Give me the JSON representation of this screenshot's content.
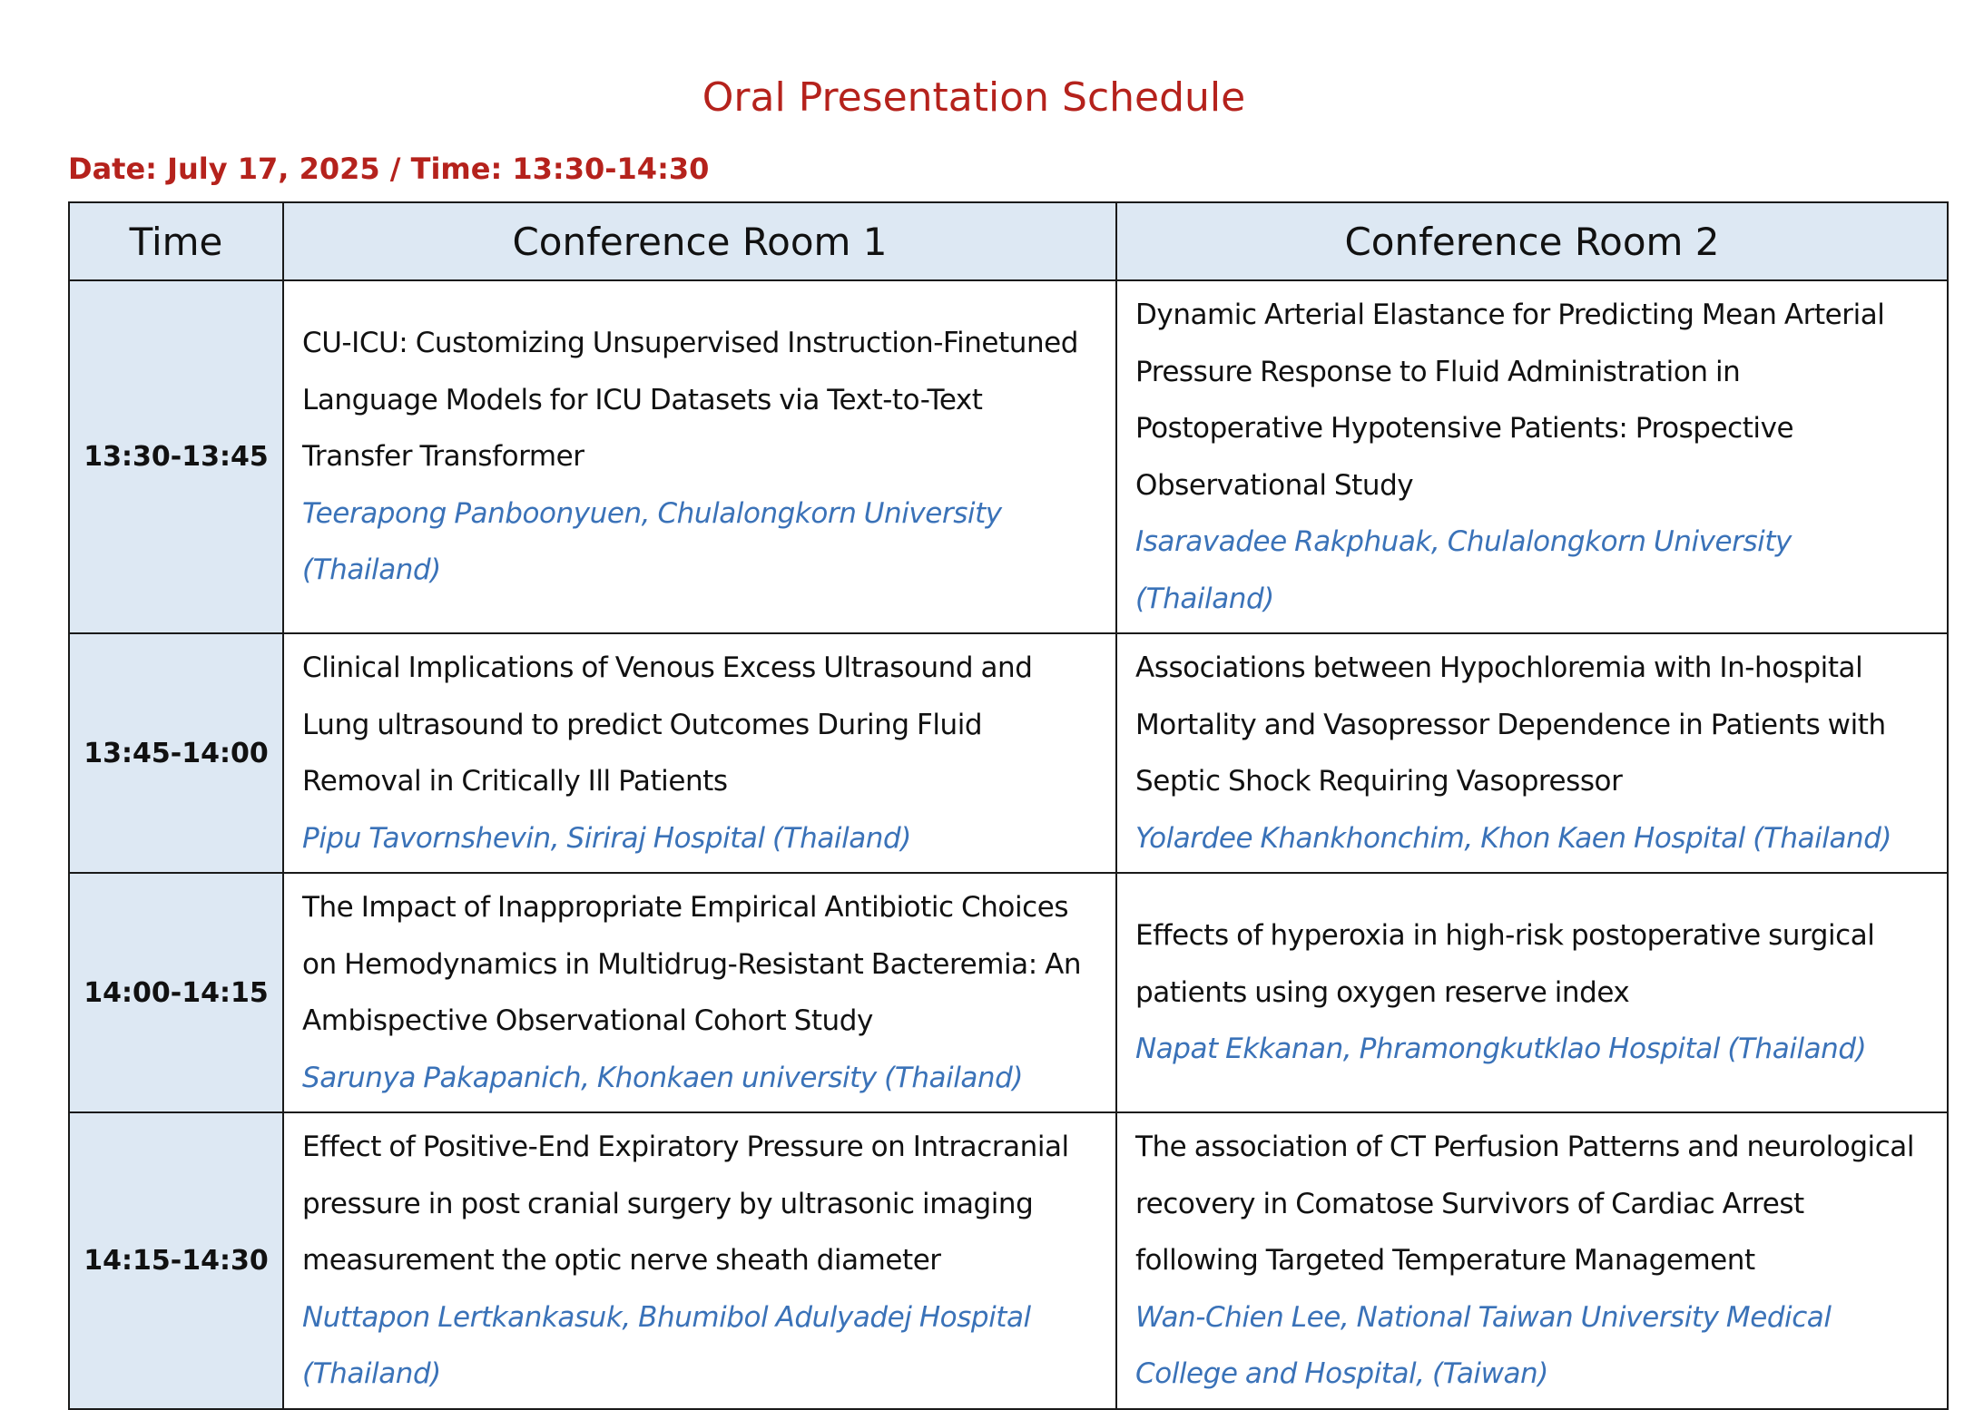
{
  "page": {
    "title": "Oral Presentation Schedule",
    "date_line": "Date: July 17, 2025 / Time: 13:30-14:30"
  },
  "table": {
    "headers": [
      "Time",
      "Conference Room 1",
      "Conference Room 2"
    ],
    "rows": [
      {
        "time": "13:30-13:45",
        "room1": {
          "title": "CU-ICU: Customizing Unsupervised Instruction-Finetuned Language Models for ICU Datasets via Text-to-Text Transfer Transformer",
          "author": "Teerapong Panboonyuen, Chulalongkorn University (Thailand)"
        },
        "room2": {
          "title": "Dynamic Arterial Elastance for Predicting Mean Arterial Pressure Response to Fluid Administration in Postoperative Hypotensive Patients: Prospective Observational Study",
          "author": "Isaravadee Rakphuak, Chulalongkorn University (Thailand)"
        }
      },
      {
        "time": "13:45-14:00",
        "room1": {
          "title": "Clinical Implications of Venous Excess Ultrasound and Lung ultrasound to predict Outcomes During Fluid Removal in Critically Ill Patients",
          "author": "Pipu Tavornshevin, Siriraj Hospital (Thailand)"
        },
        "room2": {
          "title": "Associations between Hypochloremia with In-hospital Mortality and Vasopressor Dependence in Patients with Septic Shock Requiring Vasopressor",
          "author": "Yolardee Khankhonchim, Khon Kaen Hospital (Thailand)"
        }
      },
      {
        "time": "14:00-14:15",
        "room1": {
          "title": "The Impact of Inappropriate Empirical Antibiotic Choices on Hemodynamics in Multidrug-Resistant Bacteremia: An Ambispective Observational Cohort Study",
          "author": "Sarunya Pakapanich, Khonkaen university (Thailand)"
        },
        "room2": {
          "title": "Effects of hyperoxia in high-risk postoperative surgical patients using oxygen reserve index",
          "author": "Napat Ekkanan, Phramongkutklao Hospital (Thailand)"
        }
      },
      {
        "time": "14:15-14:30",
        "room1": {
          "title": "Effect of Positive-End Expiratory Pressure on Intracranial pressure in post cranial surgery by ultrasonic imaging measurement the optic nerve sheath diameter",
          "author": "Nuttapon Lertkankasuk, Bhumibol Adulyadej Hospital (Thailand)"
        },
        "room2": {
          "title": "The association of CT Perfusion Patterns and neurological recovery in Comatose Survivors of Cardiac Arrest following Targeted Temperature Management",
          "author": "Wan-Chien Lee, National Taiwan University Medical College and Hospital, (Taiwan)"
        }
      }
    ]
  },
  "colors": {
    "title_red": "#b5221c",
    "header_fill": "#dde8f3",
    "author_blue": "#3a72b8",
    "border": "#1a1a1a"
  }
}
